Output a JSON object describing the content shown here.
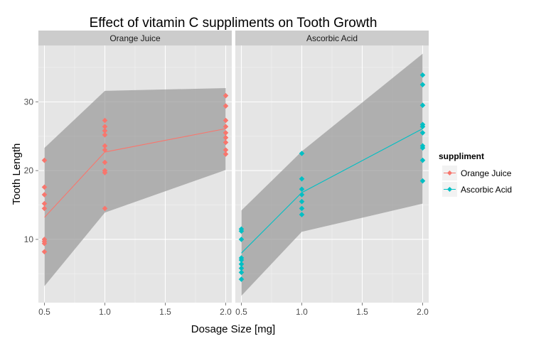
{
  "chart_data": {
    "type": "scatter",
    "title": "Effect of vitamin C suppliments on Tooth Growth",
    "xlabel": "Dosage Size [mg]",
    "ylabel": "Tooth Length",
    "xlim": [
      0.45,
      2.05
    ],
    "ylim": [
      0.8,
      38.2
    ],
    "x_ticks": [
      0.5,
      1.0,
      1.5,
      2.0
    ],
    "x_tick_labels": [
      "0.5",
      "1.0",
      "1.5",
      "2.0"
    ],
    "y_ticks": [
      10,
      20,
      30
    ],
    "y_tick_labels": [
      "10",
      "20",
      "30"
    ],
    "grid": true,
    "legend": {
      "title": "suppliment",
      "position": "right"
    },
    "facets": [
      {
        "label": "Orange Juice",
        "color": "#F8766D",
        "points": [
          [
            0.5,
            21.5
          ],
          [
            0.5,
            17.6
          ],
          [
            0.5,
            16.5
          ],
          [
            0.5,
            15.2
          ],
          [
            0.5,
            14.5
          ],
          [
            0.5,
            10.0
          ],
          [
            0.5,
            9.7
          ],
          [
            0.5,
            9.4
          ],
          [
            0.5,
            8.2
          ],
          [
            1.0,
            27.3
          ],
          [
            1.0,
            26.4
          ],
          [
            1.0,
            25.8
          ],
          [
            1.0,
            25.2
          ],
          [
            1.0,
            23.6
          ],
          [
            1.0,
            23.0
          ],
          [
            1.0,
            21.2
          ],
          [
            1.0,
            20.0
          ],
          [
            1.0,
            19.7
          ],
          [
            1.0,
            14.5
          ],
          [
            2.0,
            30.9
          ],
          [
            2.0,
            29.4
          ],
          [
            2.0,
            27.3
          ],
          [
            2.0,
            26.4
          ],
          [
            2.0,
            25.5
          ],
          [
            2.0,
            24.8
          ],
          [
            2.0,
            24.1
          ],
          [
            2.0,
            23.0
          ],
          [
            2.0,
            22.4
          ]
        ],
        "line": [
          [
            0.5,
            13.2
          ],
          [
            1.0,
            22.7
          ],
          [
            2.0,
            26.1
          ]
        ],
        "band_upper": [
          [
            0.5,
            23.3
          ],
          [
            1.0,
            31.6
          ],
          [
            2.0,
            32.0
          ]
        ],
        "band_lower": [
          [
            0.5,
            3.2
          ],
          [
            1.0,
            13.9
          ],
          [
            2.0,
            20.1
          ]
        ]
      },
      {
        "label": "Ascorbic Acid",
        "color": "#00BFC4",
        "points": [
          [
            0.5,
            11.5
          ],
          [
            0.5,
            11.2
          ],
          [
            0.5,
            10.0
          ],
          [
            0.5,
            7.3
          ],
          [
            0.5,
            7.0
          ],
          [
            0.5,
            6.4
          ],
          [
            0.5,
            5.8
          ],
          [
            0.5,
            5.2
          ],
          [
            0.5,
            4.2
          ],
          [
            1.0,
            22.5
          ],
          [
            1.0,
            18.8
          ],
          [
            1.0,
            17.3
          ],
          [
            1.0,
            16.5
          ],
          [
            1.0,
            15.5
          ],
          [
            1.0,
            14.5
          ],
          [
            1.0,
            13.6
          ],
          [
            2.0,
            33.9
          ],
          [
            2.0,
            32.5
          ],
          [
            2.0,
            29.5
          ],
          [
            2.0,
            26.7
          ],
          [
            2.0,
            26.4
          ],
          [
            2.0,
            25.5
          ],
          [
            2.0,
            23.6
          ],
          [
            2.0,
            23.3
          ],
          [
            2.0,
            21.5
          ],
          [
            2.0,
            18.5
          ]
        ],
        "line": [
          [
            0.5,
            8.0
          ],
          [
            1.0,
            16.8
          ],
          [
            2.0,
            26.1
          ]
        ],
        "band_upper": [
          [
            0.5,
            14.2
          ],
          [
            1.0,
            22.8
          ],
          [
            2.0,
            37.0
          ]
        ],
        "band_lower": [
          [
            0.5,
            1.8
          ],
          [
            1.0,
            11.1
          ],
          [
            2.0,
            15.2
          ]
        ]
      }
    ]
  }
}
